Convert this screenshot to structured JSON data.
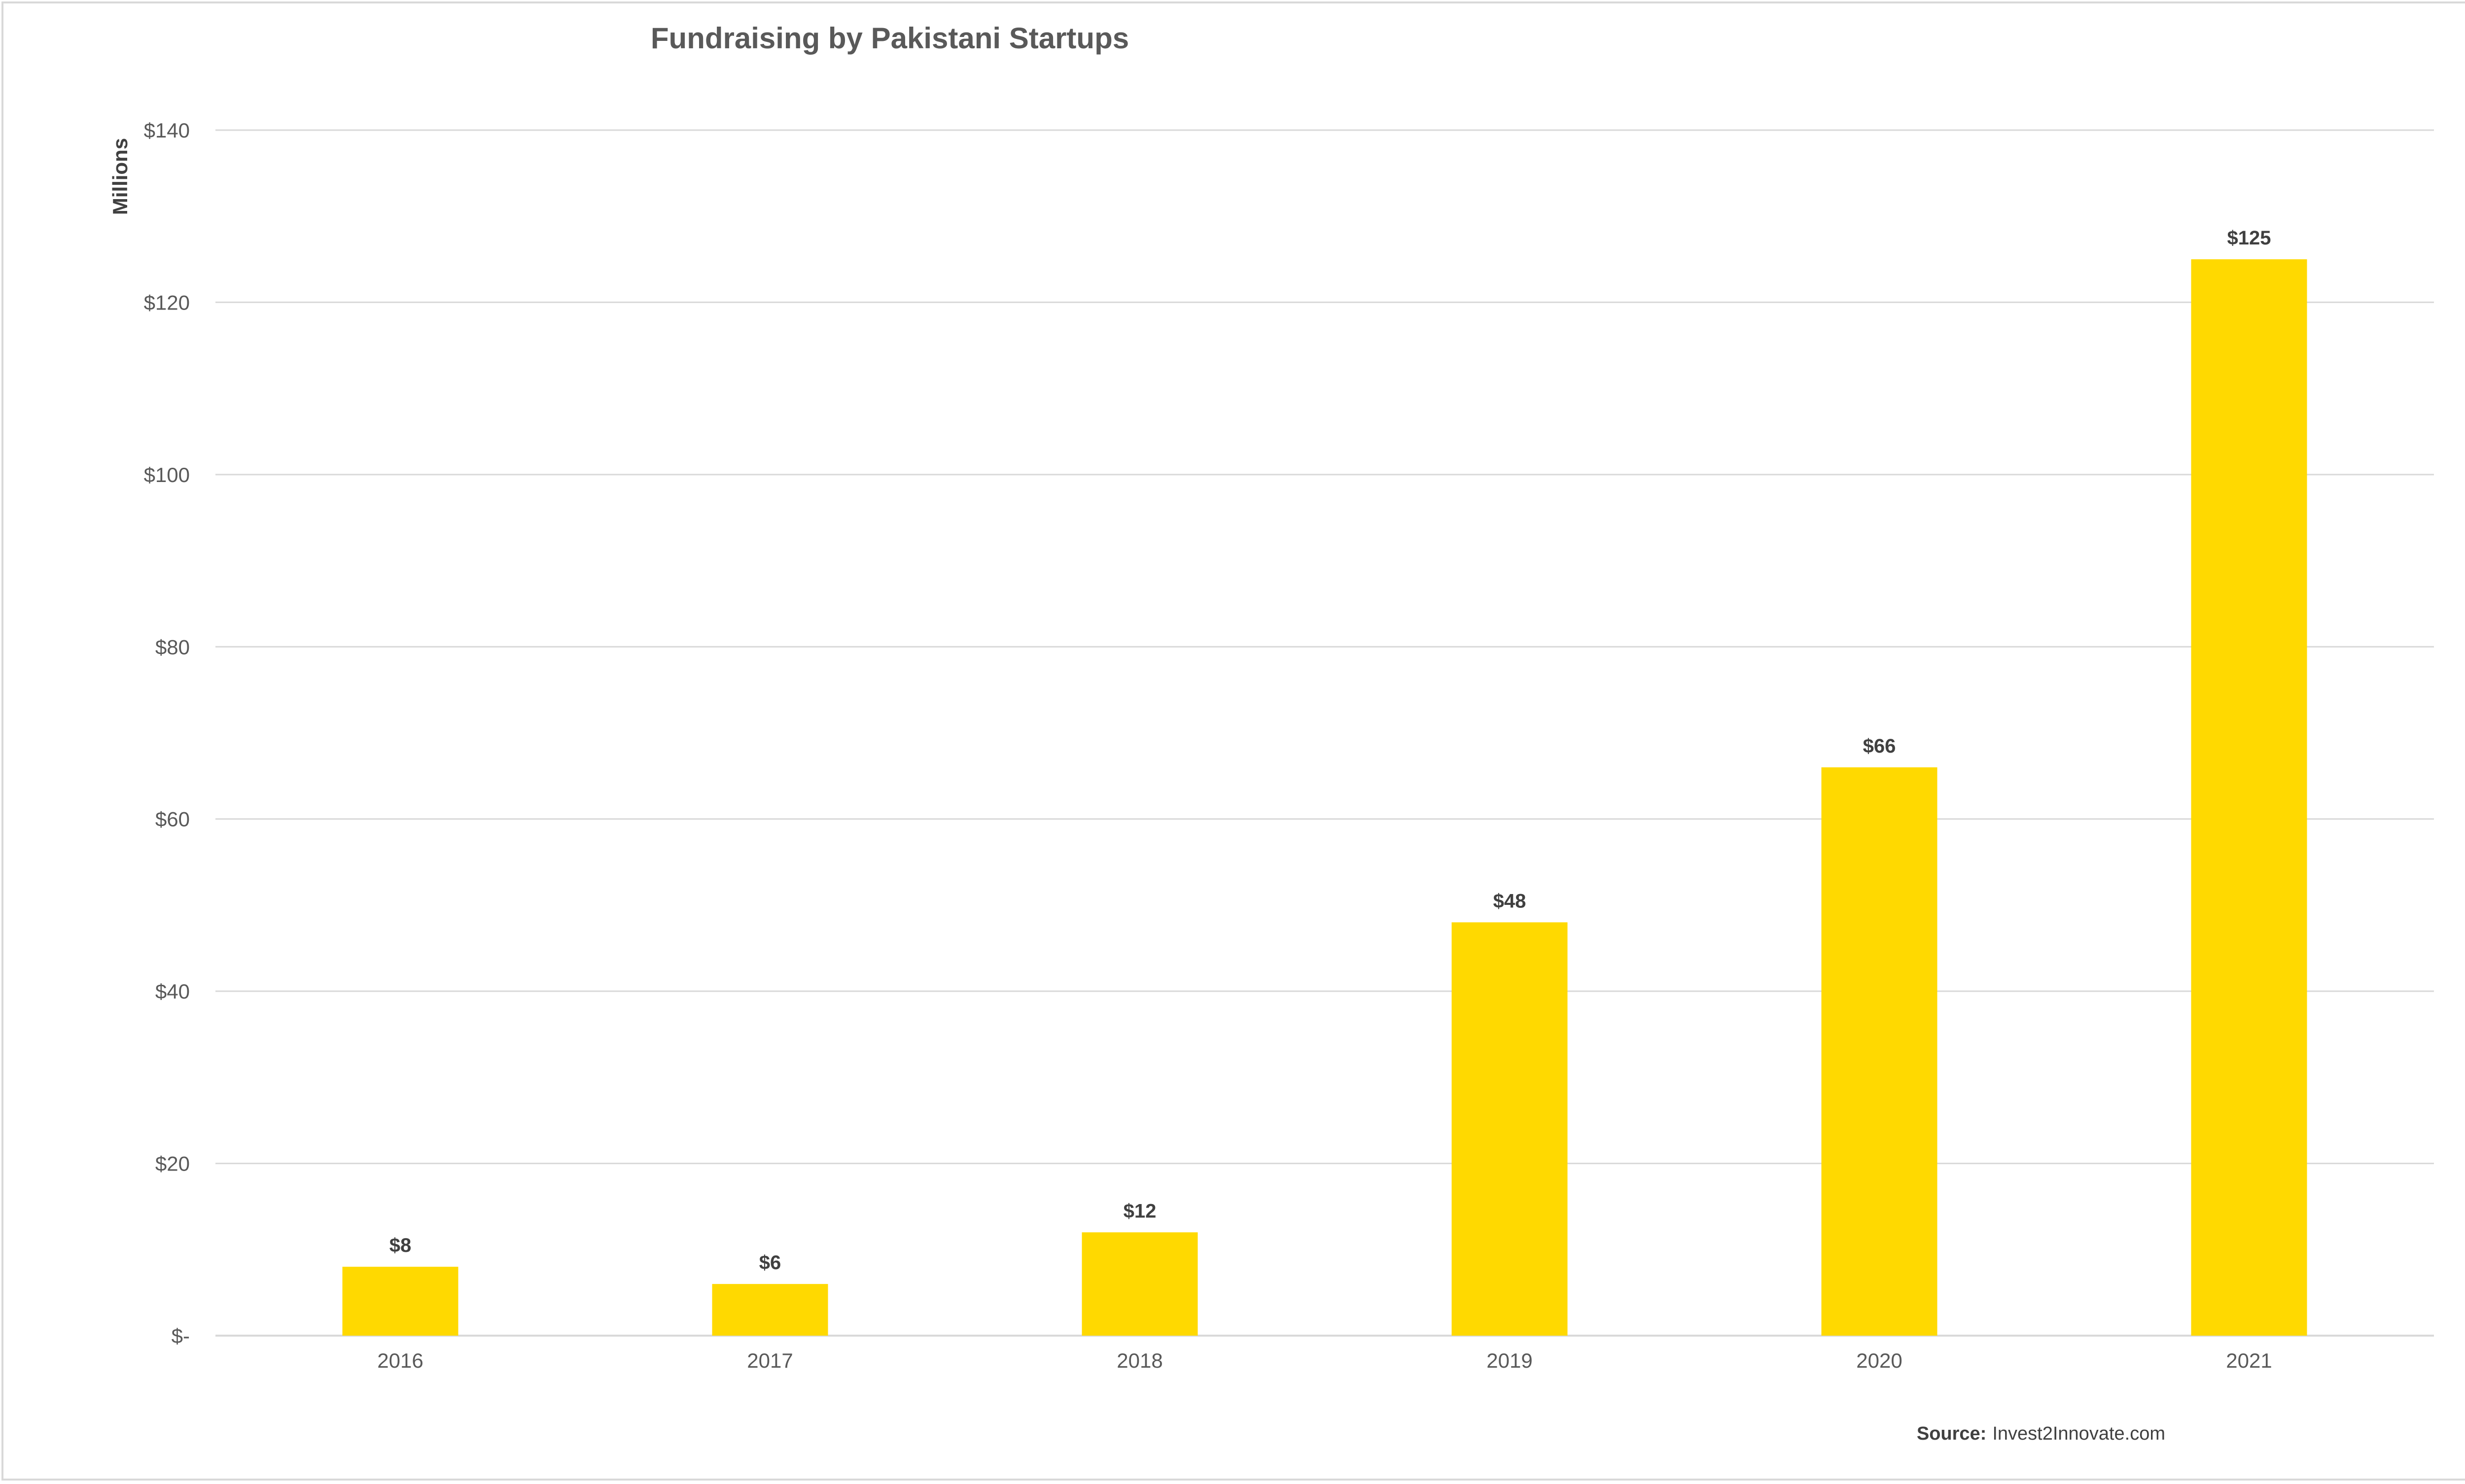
{
  "chart_data": {
    "type": "bar",
    "title": "Fundraising by Pakistani Startups",
    "ylabel": "Millions",
    "xlabel": "",
    "categories": [
      "2016",
      "2017",
      "2018",
      "2019",
      "2020",
      "2021"
    ],
    "values": [
      8,
      6,
      12,
      48,
      66,
      125
    ],
    "data_labels": [
      "$8",
      "$6",
      "$12",
      "$48",
      "$66",
      "$125"
    ],
    "ylim": [
      0,
      140
    ],
    "yticks": [
      0,
      20,
      40,
      60,
      80,
      100,
      120,
      140
    ],
    "ytick_labels": [
      "$-",
      "$20",
      "$40",
      "$60",
      "$80",
      "$100",
      "$120",
      "$140"
    ],
    "grid": true,
    "legend": "none",
    "bar_color": "#FFD900",
    "grid_color": "#d9d9d9"
  },
  "source": {
    "label": "Source:",
    "text": "Invest2Innovate.com"
  }
}
